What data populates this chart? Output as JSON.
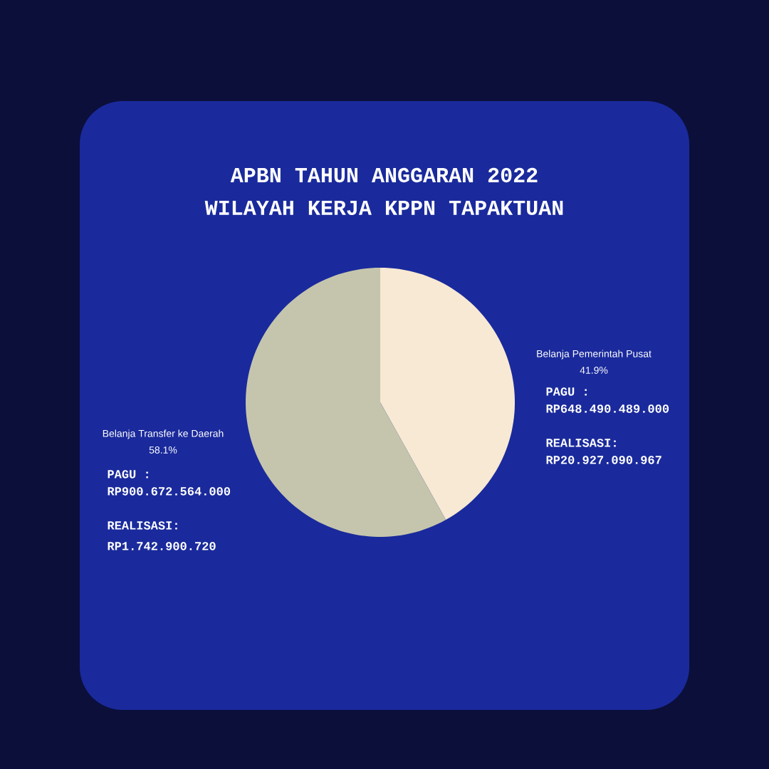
{
  "chart_data": {
    "type": "pie",
    "title": "APBN TAHUN ANGGARAN 2022",
    "subtitle": "WILAYAH KERJA KPPN TAPAKTUAN",
    "categories": [
      "Belanja Pemerintah Pusat",
      "Belanja Transfer ke Daerah"
    ],
    "values": [
      41.9,
      58.1
    ],
    "value_labels": [
      "41.9%",
      "58.1%"
    ],
    "colors": [
      "#f7e9d3",
      "#c5c5ad"
    ],
    "annotations": [
      "PAGU :",
      "RP648.490.489.000",
      "REALISASI:",
      "RP20.927.090.967",
      "PAGU :",
      "RP900.672.564.000",
      "REALISASI:",
      "RP1.742.900.720"
    ]
  }
}
